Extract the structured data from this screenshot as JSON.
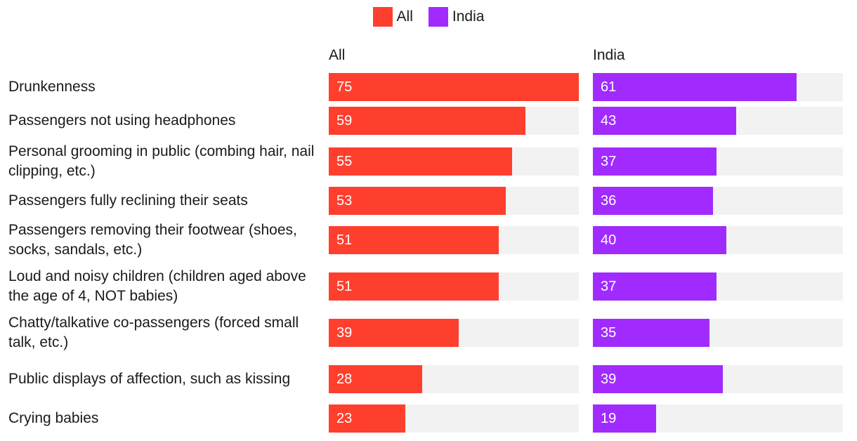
{
  "colors": {
    "all": "#ff3f2e",
    "india": "#a12bff",
    "track": "#f2f2f2"
  },
  "chart_data": {
    "type": "bar",
    "orientation": "horizontal",
    "title": "",
    "legend": [
      "All",
      "India"
    ],
    "legend_position": "top-center",
    "xlim": [
      0,
      75
    ],
    "categories": [
      "Drunkenness",
      "Passengers not using headphones",
      "Personal grooming in public (combing hair, nail clipping, etc.)",
      "Passengers fully reclining their seats",
      "Passengers removing their footwear (shoes, socks, sandals, etc.)",
      "Loud and noisy children (children aged above the age of 4, NOT babies)",
      "Chatty/talkative co-passengers (forced small talk, etc.)",
      "Public displays of affection, such as kissing",
      "Crying babies"
    ],
    "series": [
      {
        "name": "All",
        "values": [
          75,
          59,
          55,
          53,
          51,
          51,
          39,
          28,
          23
        ]
      },
      {
        "name": "India",
        "values": [
          61,
          43,
          37,
          36,
          40,
          37,
          35,
          39,
          19
        ]
      }
    ]
  }
}
